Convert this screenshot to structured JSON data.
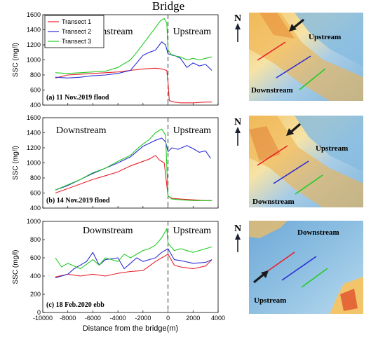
{
  "figure": {
    "top_label": "Bridge",
    "shared_xlabel": "Distance from the bridge(m)",
    "x_ticks": [
      -10000,
      -8000,
      -6000,
      -4000,
      -2000,
      0,
      2000,
      4000
    ],
    "legend": [
      "Transect 1",
      "Transect 2",
      "Transect 3"
    ],
    "colors": {
      "Transect 1": "#e8222b",
      "Transect 2": "#2c2cd6",
      "Transect 3": "#22cc22"
    }
  },
  "chart_data": [
    {
      "type": "line",
      "panel_label": "(a) 11 Nov.2019 flood",
      "ylabel": "SSC (mg/l)",
      "xlim": [
        -10000,
        4000
      ],
      "ylim": [
        400,
        1600
      ],
      "y_ticks": [
        400,
        600,
        800,
        1000,
        1200,
        1400,
        1600
      ],
      "annotations": [
        "Downstream",
        "Upstream"
      ],
      "series": [
        {
          "name": "Transect 1",
          "x": [
            -9000,
            -8000,
            -7000,
            -6000,
            -5000,
            -4000,
            -3000,
            -2000,
            -1000,
            -500,
            -100,
            0,
            100,
            500,
            1000,
            2000,
            3000,
            3500
          ],
          "y": [
            760,
            800,
            810,
            820,
            830,
            840,
            860,
            880,
            890,
            880,
            860,
            700,
            460,
            440,
            430,
            430,
            440,
            440
          ]
        },
        {
          "name": "Transect 2",
          "x": [
            -9000,
            -8000,
            -7000,
            -6000,
            -5000,
            -4000,
            -3000,
            -2500,
            -2000,
            -1500,
            -1000,
            -500,
            -200,
            0,
            500,
            1000,
            1500,
            2000,
            2500,
            3000,
            3500
          ],
          "y": [
            770,
            760,
            770,
            790,
            800,
            820,
            860,
            960,
            1060,
            1100,
            1130,
            1240,
            1200,
            1080,
            1060,
            1020,
            900,
            960,
            920,
            940,
            860
          ]
        },
        {
          "name": "Transect 3",
          "x": [
            -9000,
            -8000,
            -7000,
            -6000,
            -5000,
            -4000,
            -3000,
            -2500,
            -2000,
            -1500,
            -1000,
            -600,
            -300,
            -100,
            0,
            300,
            1000,
            1500,
            2000,
            2500,
            3000,
            3500
          ],
          "y": [
            830,
            820,
            830,
            840,
            850,
            900,
            1000,
            1100,
            1210,
            1320,
            1430,
            1520,
            1550,
            1490,
            1130,
            1060,
            1040,
            1000,
            1020,
            1000,
            1020,
            1040
          ]
        }
      ]
    },
    {
      "type": "line",
      "panel_label": "(b) 14 Nov.2019 flood",
      "ylabel": "SSC (mg/l)",
      "xlim": [
        -10000,
        4000
      ],
      "ylim": [
        400,
        1600
      ],
      "y_ticks": [
        400,
        600,
        800,
        1000,
        1200,
        1400,
        1600
      ],
      "annotations": [
        "Downstream",
        "Upstream"
      ],
      "series": [
        {
          "name": "Transect 1",
          "x": [
            -9000,
            -8000,
            -7000,
            -6000,
            -5000,
            -4000,
            -3000,
            -2000,
            -1500,
            -1000,
            -700,
            -300,
            0,
            300,
            1000,
            2000,
            3000,
            3500
          ],
          "y": [
            600,
            660,
            720,
            780,
            830,
            880,
            960,
            1020,
            1050,
            1100,
            1040,
            1000,
            560,
            530,
            520,
            510,
            500,
            500
          ]
        },
        {
          "name": "Transect 2",
          "x": [
            -9000,
            -8000,
            -7000,
            -6000,
            -5000,
            -4000,
            -3000,
            -2500,
            -2000,
            -1500,
            -1000,
            -500,
            -200,
            0,
            300,
            800,
            1500,
            2000,
            2500,
            3000,
            3400
          ],
          "y": [
            640,
            700,
            780,
            860,
            930,
            1000,
            1080,
            1150,
            1220,
            1260,
            1300,
            1330,
            1280,
            1150,
            1200,
            1180,
            1230,
            1190,
            1140,
            1160,
            1060
          ]
        },
        {
          "name": "Transect 3",
          "x": [
            -9000,
            -8000,
            -7000,
            -6000,
            -5000,
            -4000,
            -3000,
            -2500,
            -2000,
            -1500,
            -1000,
            -500,
            -200,
            0,
            300,
            1000,
            2000,
            3000,
            3500
          ],
          "y": [
            640,
            710,
            780,
            870,
            930,
            1020,
            1100,
            1180,
            1250,
            1310,
            1400,
            1450,
            1370,
            560,
            520,
            510,
            500,
            500,
            500
          ]
        }
      ]
    },
    {
      "type": "line",
      "panel_label": "(c) 18 Feb.2020 ebb",
      "ylabel": "SSC (mg/l)",
      "xlim": [
        -10000,
        4000
      ],
      "ylim": [
        0,
        1000
      ],
      "y_ticks": [
        0,
        200,
        400,
        600,
        800,
        1000
      ],
      "annotations": [
        "Downstream",
        "Upstream"
      ],
      "series": [
        {
          "name": "Transect 1",
          "x": [
            -9000,
            -8000,
            -7000,
            -6000,
            -5000,
            -4000,
            -3000,
            -2000,
            -1000,
            -500,
            0,
            500,
            1000,
            2000,
            3000,
            3500
          ],
          "y": [
            390,
            420,
            400,
            420,
            400,
            430,
            450,
            460,
            560,
            600,
            640,
            520,
            500,
            480,
            510,
            580
          ]
        },
        {
          "name": "Transect 2",
          "x": [
            -9000,
            -8000,
            -7500,
            -6500,
            -6000,
            -5500,
            -5000,
            -4000,
            -3500,
            -3000,
            -2500,
            -2000,
            -1500,
            -1000,
            -500,
            0,
            500,
            1000,
            2000,
            3000,
            3500
          ],
          "y": [
            380,
            420,
            480,
            560,
            660,
            520,
            580,
            600,
            480,
            540,
            600,
            560,
            580,
            600,
            660,
            700,
            580,
            570,
            540,
            550,
            580
          ]
        },
        {
          "name": "Transect 3",
          "x": [
            -9000,
            -8500,
            -8000,
            -7000,
            -6000,
            -5500,
            -5000,
            -4000,
            -3500,
            -3000,
            -2000,
            -1500,
            -1000,
            -500,
            -100,
            0,
            500,
            1000,
            2000,
            3000,
            3500
          ],
          "y": [
            600,
            500,
            540,
            480,
            580,
            520,
            600,
            560,
            640,
            600,
            680,
            700,
            740,
            820,
            920,
            760,
            680,
            700,
            660,
            700,
            720
          ]
        }
      ]
    }
  ],
  "maps": [
    {
      "north": "N",
      "labels": [
        "Upstream",
        "Downstream"
      ]
    },
    {
      "north": "N",
      "labels": [
        "Upstream",
        "Downstream"
      ]
    },
    {
      "north": "N",
      "labels": [
        "Downstream",
        "Upstream"
      ]
    }
  ]
}
